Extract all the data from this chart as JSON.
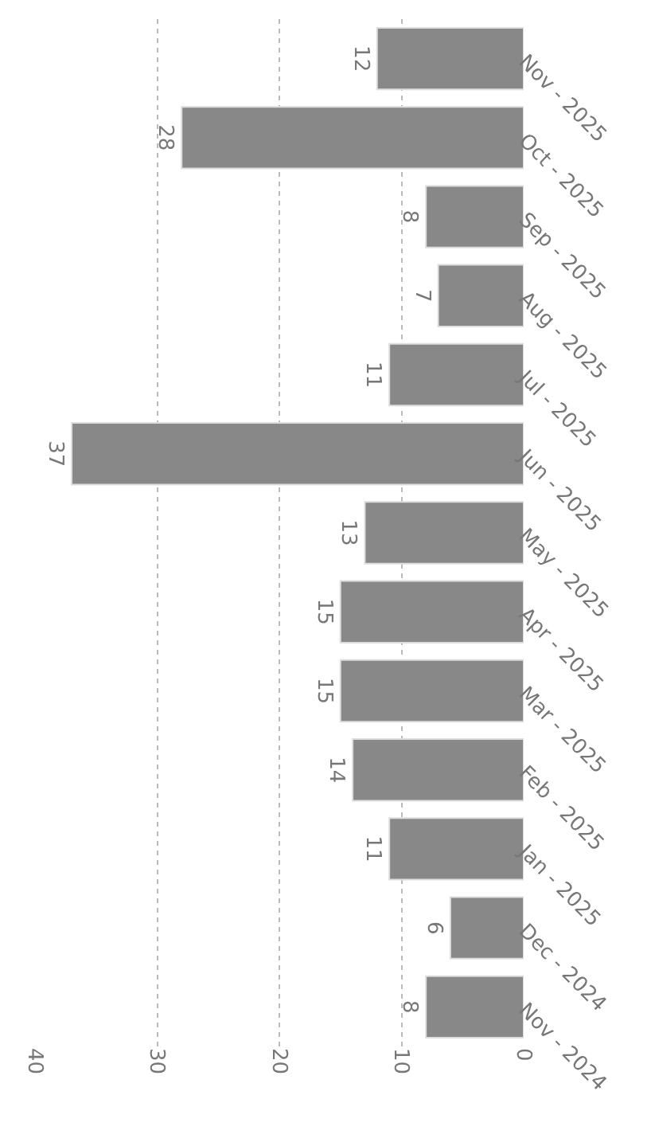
{
  "chart_data": {
    "type": "bar",
    "orientation": "horizontal",
    "categories": [
      "Nov - 2025",
      "Oct - 2025",
      "Sep - 2025",
      "Aug - 2025",
      "Jul - 2025",
      "Jun - 2025",
      "May - 2025",
      "Apr - 2025",
      "Mar - 2025",
      "Feb - 2025",
      "Jan - 2025",
      "Dec - 2024",
      "Nov - 2024"
    ],
    "values": [
      12,
      28,
      8,
      7,
      11,
      37,
      13,
      15,
      15,
      14,
      11,
      6,
      8
    ],
    "color": "#888888",
    "xlim": [
      40,
      0
    ],
    "xticks": [
      40,
      30,
      20,
      10,
      0
    ],
    "grid": "x",
    "data_labels": true
  }
}
